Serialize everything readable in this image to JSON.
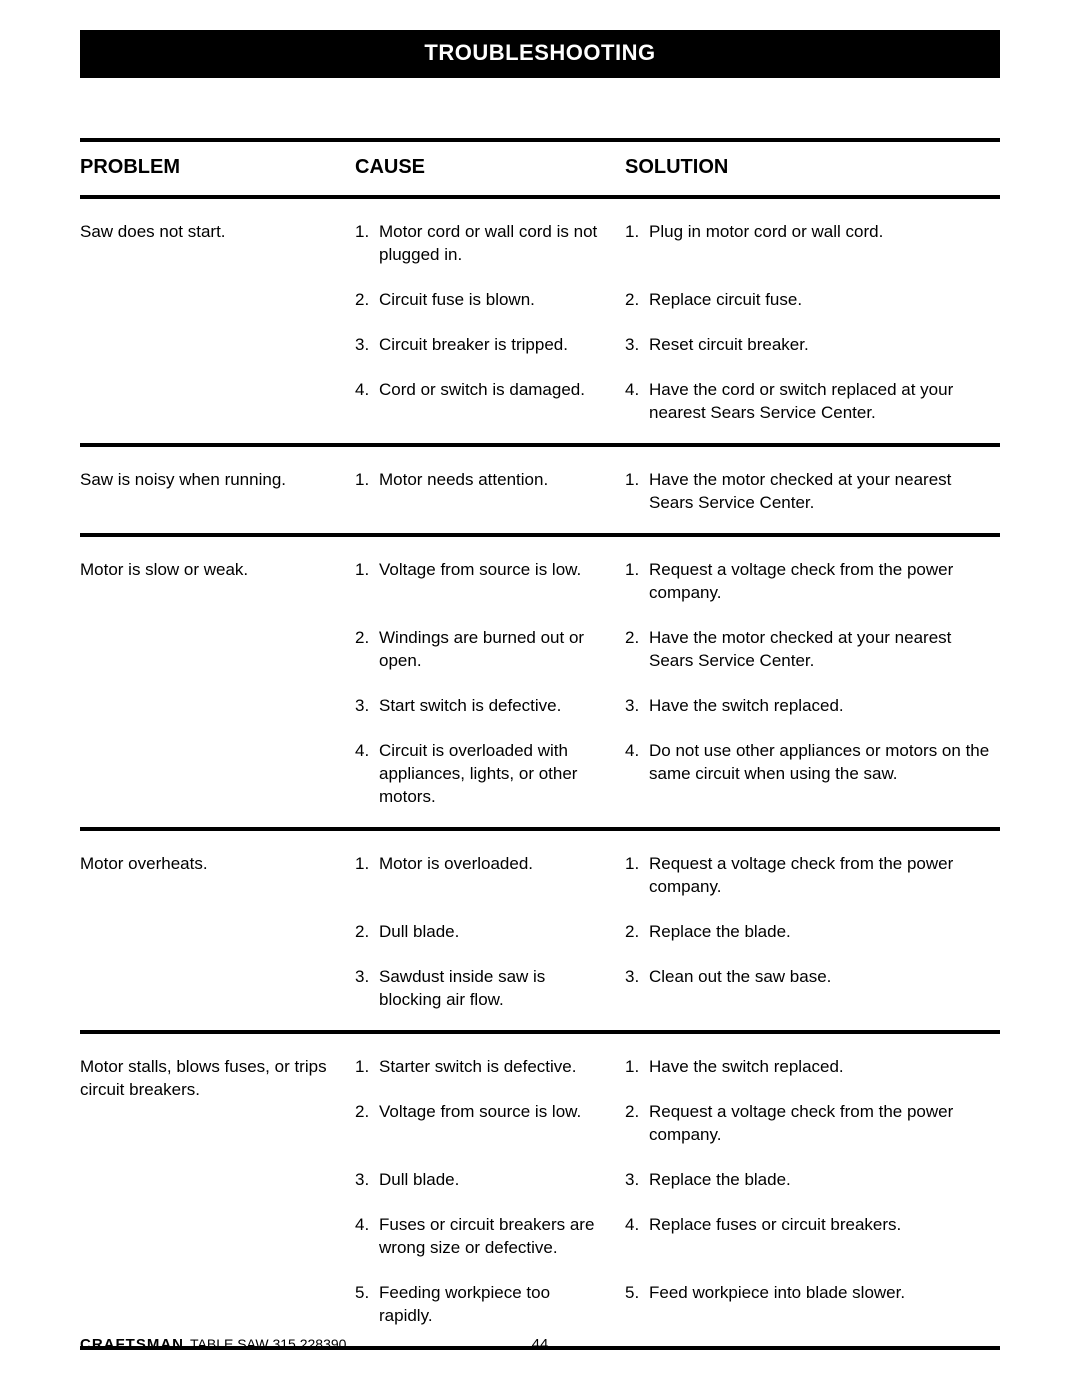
{
  "title": "TROUBLESHOOTING",
  "headers": {
    "problem": "PROBLEM",
    "cause": "CAUSE",
    "solution": "SOLUTION"
  },
  "rows": [
    {
      "problem": "Saw does not start.",
      "causes": [
        "Motor cord or wall cord is not plugged in.",
        "Circuit fuse is blown.",
        "Circuit breaker is tripped.",
        "Cord or switch is damaged."
      ],
      "solutions": [
        "Plug in motor cord or wall cord.",
        "Replace circuit fuse.",
        "Reset circuit breaker.",
        "Have the cord or switch replaced at your nearest Sears Service Center."
      ]
    },
    {
      "problem": "Saw is noisy when running.",
      "causes": [
        "Motor needs attention."
      ],
      "solutions": [
        "Have the motor checked at your nearest Sears Service Center."
      ]
    },
    {
      "problem": "Motor is slow or weak.",
      "causes": [
        "Voltage from source is low.",
        "Windings are burned out or open.",
        "Start switch is defective.",
        "Circuit is overloaded with appliances, lights, or other motors."
      ],
      "solutions": [
        "Request a voltage check from the power company.",
        "Have the motor checked at your nearest Sears Service Center.",
        "Have the switch replaced.",
        "Do not use other appliances or motors on the same circuit when using the saw."
      ]
    },
    {
      "problem": "Motor overheats.",
      "causes": [
        "Motor is overloaded.",
        "Dull blade.",
        "Sawdust inside saw is blocking air flow."
      ],
      "solutions": [
        "Request a voltage check from the power company.",
        "Replace the blade.",
        "Clean out the saw base."
      ]
    },
    {
      "problem": "Motor stalls, blows fuses, or trips circuit breakers.",
      "causes": [
        "Starter switch is defective.",
        "Voltage from source is low.",
        "Dull blade.",
        "Fuses or circuit breakers are wrong size or defective.",
        "Feeding workpiece too rapidly."
      ],
      "solutions": [
        "Have the switch replaced.",
        "Request a voltage check from the power company.",
        "Replace the blade.",
        "Replace fuses or circuit breakers.",
        "Feed workpiece into blade slower."
      ]
    }
  ],
  "footer": {
    "brand": "CRAFTSMAN",
    "model": "TABLE SAW 315.228390",
    "page": "44"
  }
}
